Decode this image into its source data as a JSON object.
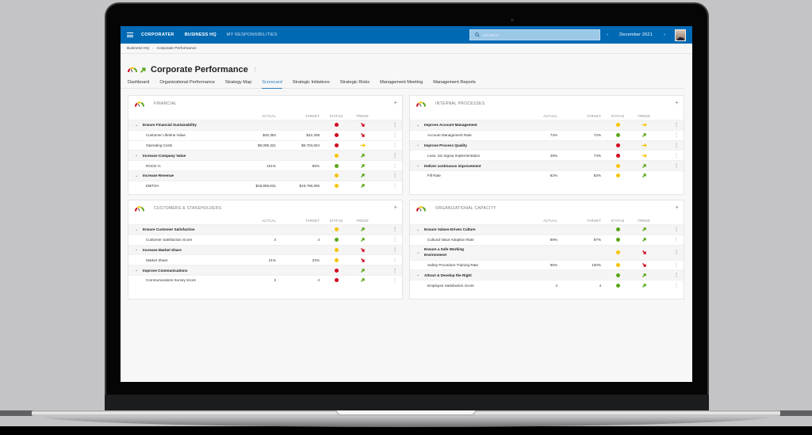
{
  "colors": {
    "brand": "#0069b4",
    "red": "#d0021b",
    "yellow": "#f5c400",
    "green": "#58a618"
  },
  "topbar": {
    "logo": "CORPORATER",
    "nav": [
      "BUSINESS HQ",
      "MY RESPONSIBILITIES"
    ],
    "search_placeholder": "SEARCH",
    "period": "December 2021",
    "prev_icon": "‹",
    "next_icon": "›"
  },
  "breadcrumb": {
    "items": [
      "Business HQ",
      "Corporate Performance"
    ],
    "separator": "›"
  },
  "page": {
    "title": "Corporate Performance",
    "menu_icon": "⋮"
  },
  "tabs": [
    {
      "label": "Dashboard"
    },
    {
      "label": "Organizational Performance"
    },
    {
      "label": "Strategy Map"
    },
    {
      "label": "Scorecard",
      "active": true
    },
    {
      "label": "Strategic Initiatives"
    },
    {
      "label": "Strategic Risks"
    },
    {
      "label": "Management Meeting"
    },
    {
      "label": "Management Reports"
    }
  ],
  "columns": {
    "actual": "ACTUAL",
    "target": "TARGET",
    "status": "STATUS",
    "trend": "TREND"
  },
  "cards": [
    {
      "title": "FINANCIAL",
      "rows": [
        {
          "type": "group",
          "name": "Ensure Financial Sustainability",
          "status": "red",
          "trend": "down"
        },
        {
          "type": "child",
          "name": "Customer Lifetime Value",
          "actual": "$20,392",
          "target": "$22,408",
          "status": "red",
          "trend": "down"
        },
        {
          "type": "child",
          "name": "Operating Costs",
          "actual": "$9,089,321",
          "target": "$9,703,604",
          "status": "red",
          "trend": "flat"
        },
        {
          "type": "group",
          "name": "Increase Company Value",
          "status": "yellow",
          "trend": "up"
        },
        {
          "type": "child",
          "name": "ROCE %",
          "actual": "101%",
          "target": "85%",
          "status": "green",
          "trend": "up"
        },
        {
          "type": "group",
          "name": "Increase Revenue",
          "status": "yellow",
          "trend": "up"
        },
        {
          "type": "child",
          "name": "EBITDA",
          "actual": "$18,859,631",
          "target": "$19,796,805",
          "status": "yellow",
          "trend": "up"
        }
      ]
    },
    {
      "title": "INTERNAL PROCESSES",
      "rows": [
        {
          "type": "group",
          "name": "Improve Account Management",
          "status": "yellow",
          "trend": "flat"
        },
        {
          "type": "child",
          "name": "Account Management Rate",
          "actual": "74%",
          "target": "72%",
          "status": "green",
          "trend": "up"
        },
        {
          "type": "group",
          "name": "Improve Process Quality",
          "status": "red",
          "trend": "flat"
        },
        {
          "type": "child",
          "name": "Lean, Six Sigma Implementation",
          "actual": "49%",
          "target": "74%",
          "status": "red",
          "trend": "flat"
        },
        {
          "type": "group",
          "name": "Deliver continuous improvement",
          "status": "yellow",
          "trend": "up"
        },
        {
          "type": "child",
          "name": "Fill Rate",
          "actual": "82%",
          "target": "82%",
          "status": "yellow",
          "trend": "up",
          "nomenu": true
        }
      ]
    },
    {
      "title": "CUSTOMERS & STAKEHOLDERS",
      "rows": [
        {
          "type": "group",
          "name": "Ensure Customer Satisfaction",
          "status": "yellow",
          "trend": "up"
        },
        {
          "type": "child",
          "name": "Customer Satisfaction Score",
          "actual": "4",
          "target": "4",
          "status": "green",
          "trend": "up"
        },
        {
          "type": "group",
          "name": "Increase Market Share",
          "status": "yellow",
          "trend": "down"
        },
        {
          "type": "child",
          "name": "Market Share",
          "actual": "21%",
          "target": "22%",
          "status": "yellow",
          "trend": "down"
        },
        {
          "type": "group",
          "name": "Improve Communications",
          "status": "red",
          "trend": "up"
        },
        {
          "type": "child",
          "name": "Communications Survey Score",
          "actual": "3",
          "target": "4",
          "status": "red",
          "trend": "up"
        }
      ]
    },
    {
      "title": "ORGANIZATIONAL CAPACITY",
      "rows": [
        {
          "type": "group",
          "name": "Ensure Values-Driven Culture",
          "status": "green",
          "trend": "up"
        },
        {
          "type": "child",
          "name": "Cultural Value Adoption Rate",
          "actual": "89%",
          "target": "87%",
          "status": "green",
          "trend": "up"
        },
        {
          "type": "group",
          "name": "Ensure a Safe Working Environment",
          "status": "yellow",
          "trend": "down",
          "tall": true
        },
        {
          "type": "child",
          "name": "Safety Procedure Training Rate",
          "actual": "95%",
          "target": "100%",
          "status": "yellow",
          "trend": "down"
        },
        {
          "type": "group",
          "name": "Attract & Develop the Right",
          "status": "green",
          "trend": "up"
        },
        {
          "type": "child",
          "name": "Employee Satisfaction Score",
          "actual": "4",
          "target": "4",
          "status": "green",
          "trend": "up"
        }
      ]
    }
  ]
}
